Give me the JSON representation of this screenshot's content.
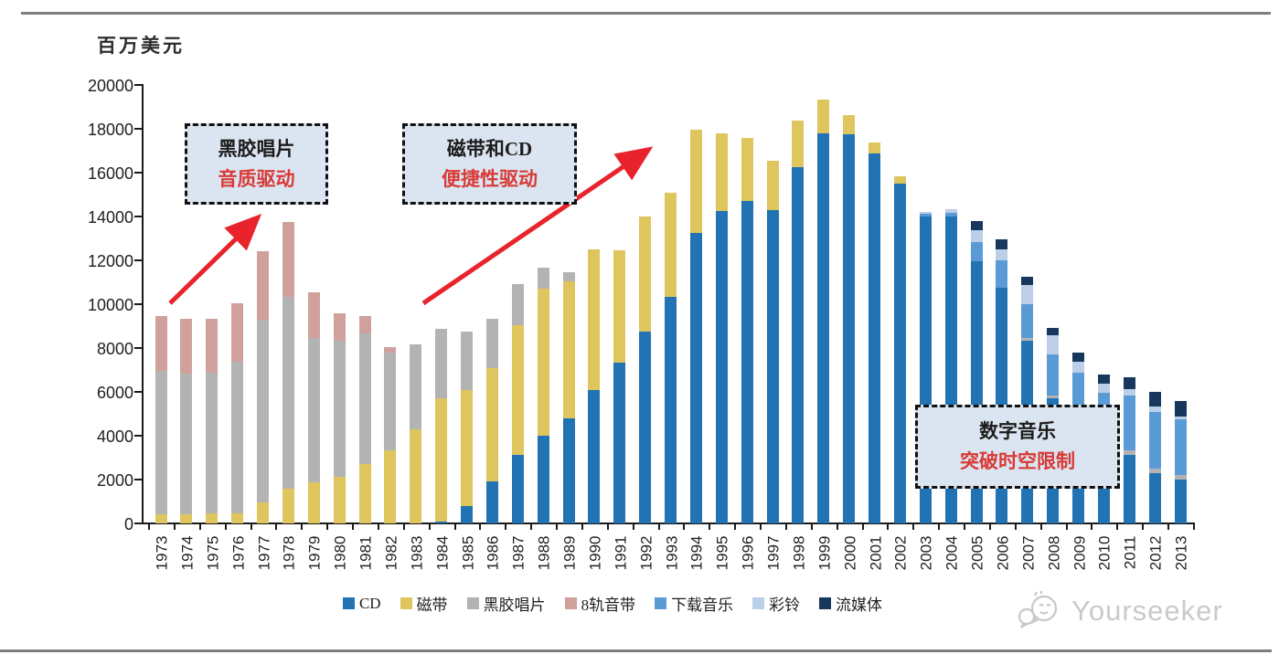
{
  "unit_label": "百万美元",
  "annotations": {
    "vinyl": {
      "line1": "黑胶唱片",
      "line2": "音质驱动"
    },
    "tape_cd": {
      "line1": "磁带和CD",
      "line2": "便捷性驱动"
    },
    "digital": {
      "line1": "数字音乐",
      "line2": "突破时空限制"
    }
  },
  "watermark": {
    "text": "Yourseeker",
    "icon": "wechat-icon"
  },
  "colors": {
    "arrow_red": "#e8232b",
    "annotation_red": "#d93a36",
    "annotation_fill": "#dbe5f1",
    "axis_black": "#1a1a1a",
    "watermark_gray": "#c9c9c9"
  },
  "chart_data": {
    "type": "bar",
    "stacked": true,
    "title": "",
    "xlabel": "",
    "ylabel": "百万美元",
    "ylim": [
      0,
      20000
    ],
    "ytick_step": 2000,
    "grid": false,
    "legend_position": "bottom",
    "categories": [
      "1973",
      "1974",
      "1975",
      "1976",
      "1977",
      "1978",
      "1979",
      "1980",
      "1981",
      "1982",
      "1983",
      "1984",
      "1985",
      "1986",
      "1987",
      "1988",
      "1989",
      "1990",
      "1991",
      "1992",
      "1993",
      "1994",
      "1995",
      "1996",
      "1997",
      "1998",
      "1999",
      "2000",
      "2001",
      "2002",
      "2003",
      "2004",
      "2005",
      "2006",
      "2007",
      "2008",
      "2009",
      "2010",
      "2011",
      "2012",
      "2013"
    ],
    "series": [
      {
        "name": "CD",
        "color": "#2173b4",
        "values": [
          0,
          0,
          0,
          0,
          0,
          0,
          0,
          0,
          0,
          0,
          0,
          100,
          780,
          1900,
          3110,
          4020,
          4780,
          6100,
          7330,
          8770,
          10340,
          13260,
          14230,
          14690,
          14300,
          16250,
          17800,
          17750,
          16870,
          15480,
          13980,
          13980,
          11940,
          10760,
          8320,
          5700,
          4700,
          3900,
          3140,
          2280,
          2000
        ]
      },
      {
        "name": "磁带",
        "color": "#dfc55e",
        "values": [
          400,
          420,
          460,
          470,
          960,
          1580,
          1860,
          2140,
          2700,
          3320,
          4290,
          5610,
          5320,
          5170,
          5930,
          6670,
          6250,
          6420,
          5120,
          5250,
          4750,
          4720,
          3570,
          2880,
          2250,
          2110,
          1530,
          860,
          510,
          350,
          0,
          0,
          0,
          0,
          0,
          0,
          0,
          0,
          0,
          0,
          0
        ]
      },
      {
        "name": "黑胶唱片",
        "color": "#b3b3b3",
        "values": [
          6560,
          6410,
          6420,
          6920,
          8340,
          8760,
          6600,
          6210,
          5980,
          4480,
          3890,
          3170,
          2670,
          2260,
          1880,
          980,
          420,
          0,
          0,
          0,
          0,
          0,
          0,
          0,
          0,
          0,
          0,
          0,
          0,
          0,
          0,
          0,
          0,
          0,
          140,
          140,
          130,
          150,
          210,
          230,
          210
        ]
      },
      {
        "name": "8轨音带",
        "color": "#d0a09c",
        "values": [
          2500,
          2500,
          2450,
          2670,
          3100,
          3430,
          2090,
          1220,
          790,
          250,
          0,
          0,
          0,
          0,
          0,
          0,
          0,
          0,
          0,
          0,
          0,
          0,
          0,
          0,
          0,
          0,
          0,
          0,
          0,
          0,
          0,
          0,
          0,
          0,
          0,
          0,
          0,
          0,
          0,
          0,
          0
        ]
      },
      {
        "name": "下载音乐",
        "color": "#5b9bd5",
        "values": [
          0,
          0,
          0,
          0,
          0,
          0,
          0,
          0,
          0,
          0,
          0,
          0,
          0,
          0,
          0,
          0,
          0,
          0,
          0,
          0,
          0,
          0,
          0,
          0,
          0,
          0,
          0,
          0,
          0,
          0,
          130,
          200,
          900,
          1250,
          1530,
          1860,
          2040,
          1910,
          2500,
          2590,
          2530
        ]
      },
      {
        "name": "彩铃",
        "color": "#bccfe8",
        "values": [
          0,
          0,
          0,
          0,
          0,
          0,
          0,
          0,
          0,
          0,
          0,
          0,
          0,
          0,
          0,
          0,
          0,
          0,
          0,
          0,
          0,
          0,
          0,
          0,
          0,
          0,
          0,
          0,
          0,
          0,
          120,
          150,
          550,
          490,
          900,
          900,
          490,
          420,
          280,
          240,
          140
        ]
      },
      {
        "name": "流媒体",
        "color": "#17375d",
        "values": [
          0,
          0,
          0,
          0,
          0,
          0,
          0,
          0,
          0,
          0,
          0,
          0,
          0,
          0,
          0,
          0,
          0,
          0,
          0,
          0,
          0,
          0,
          0,
          0,
          0,
          0,
          0,
          0,
          0,
          0,
          0,
          0,
          420,
          440,
          380,
          310,
          440,
          420,
          530,
          650,
          690
        ]
      }
    ]
  }
}
